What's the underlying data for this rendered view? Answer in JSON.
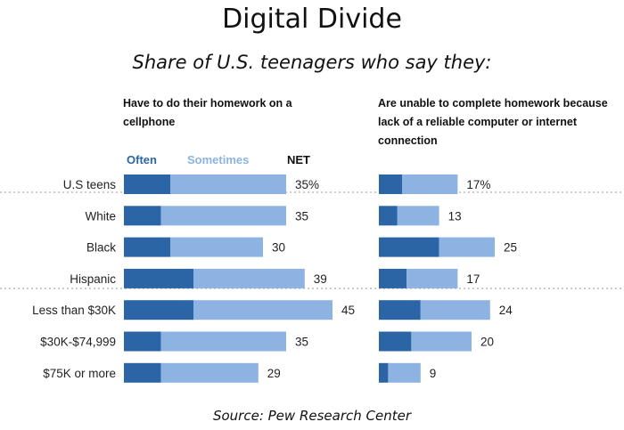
{
  "title": "Digital Divide",
  "subtitle": "Share of U.S. teenagers who say they:",
  "source": "Source: Pew Research Center",
  "legend": {
    "often": "Often",
    "sometimes": "Sometimes",
    "net": "NET"
  },
  "colors": {
    "often": "#2b65a6",
    "sometimes": "#8db3e2"
  },
  "categories": [
    "U.S teens",
    "White",
    "Black",
    "Hispanic",
    "Less than $30K",
    "$30K-$74,999",
    "$75K or more"
  ],
  "chart_data": [
    {
      "type": "bar",
      "orientation": "horizontal",
      "stacked": true,
      "title": "Have to do their homework on a cellphone",
      "categories": [
        "U.S teens",
        "White",
        "Black",
        "Hispanic",
        "Less than $30K",
        "$30K-$74,999",
        "$75K or more"
      ],
      "series": [
        {
          "name": "Often",
          "values": [
            10,
            8,
            10,
            15,
            15,
            8,
            8
          ]
        },
        {
          "name": "Sometimes",
          "values": [
            25,
            27,
            20,
            24,
            30,
            27,
            21
          ]
        }
      ],
      "net": [
        35,
        35,
        30,
        39,
        45,
        35,
        29
      ],
      "net_labels": [
        "35%",
        "35",
        "30",
        "39",
        "45",
        "35",
        "29"
      ]
    },
    {
      "type": "bar",
      "orientation": "horizontal",
      "stacked": true,
      "title": "Are unable to complete homework because lack of a reliable computer or internet connection",
      "categories": [
        "U.S teens",
        "White",
        "Black",
        "Hispanic",
        "Less than $30K",
        "$30K-$74,999",
        "$75K or more"
      ],
      "series": [
        {
          "name": "Often",
          "values": [
            5,
            4,
            13,
            6,
            9,
            7,
            2
          ]
        },
        {
          "name": "Sometimes",
          "values": [
            12,
            9,
            12,
            11,
            15,
            13,
            7
          ]
        }
      ],
      "net": [
        17,
        13,
        25,
        17,
        24,
        20,
        9
      ],
      "net_labels": [
        "17%",
        "13",
        "25",
        "17",
        "24",
        "20",
        "9"
      ]
    }
  ]
}
